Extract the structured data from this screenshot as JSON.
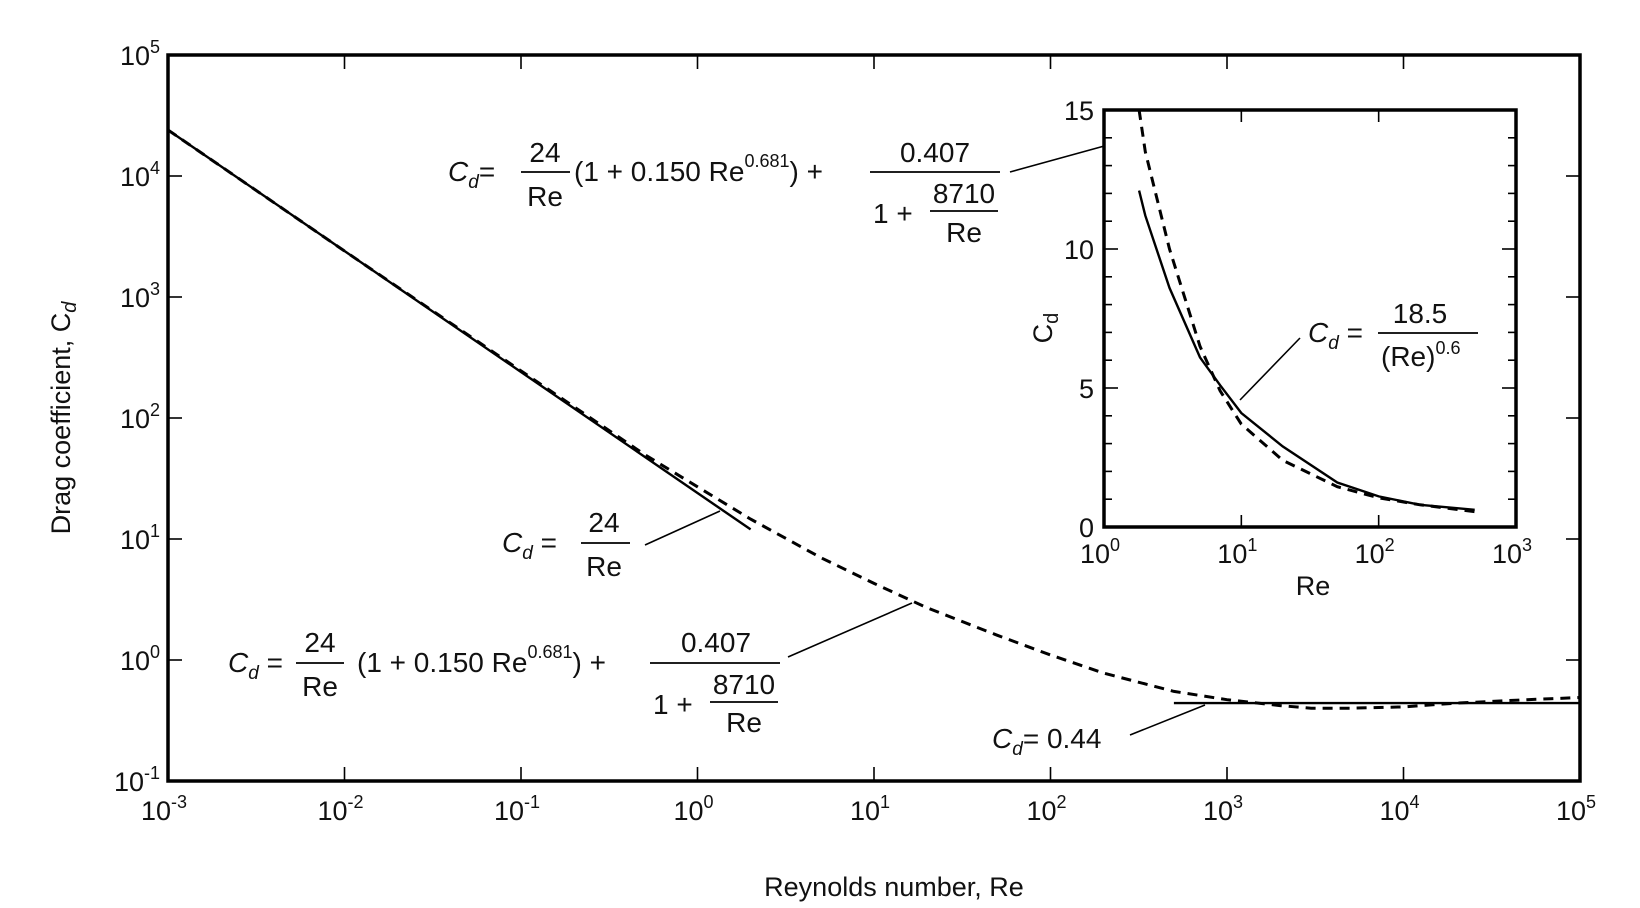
{
  "chart_data": [
    {
      "type": "line",
      "xlabel": "Reynolds number, Re",
      "ylabel": "Drag coefficient, C",
      "ylabel_sub": "d",
      "xscale": "log",
      "yscale": "log",
      "xlim": [
        0.001,
        100000
      ],
      "ylim": [
        0.1,
        100000
      ],
      "x_ticks": [
        {
          "base": "10",
          "exp": "-3"
        },
        {
          "base": "10",
          "exp": "-2"
        },
        {
          "base": "10",
          "exp": "-1"
        },
        {
          "base": "10",
          "exp": "0"
        },
        {
          "base": "10",
          "exp": "1"
        },
        {
          "base": "10",
          "exp": "2"
        },
        {
          "base": "10",
          "exp": "3"
        },
        {
          "base": "10",
          "exp": "4"
        },
        {
          "base": "10",
          "exp": "5"
        }
      ],
      "y_ticks": [
        {
          "base": "10",
          "exp": "-1"
        },
        {
          "base": "10",
          "exp": "0"
        },
        {
          "base": "10",
          "exp": "1"
        },
        {
          "base": "10",
          "exp": "2"
        },
        {
          "base": "10",
          "exp": "3"
        },
        {
          "base": "10",
          "exp": "4"
        },
        {
          "base": "10",
          "exp": "5"
        }
      ],
      "series": [
        {
          "style": "solid",
          "x": [
            0.001,
            0.01,
            0.1,
            1,
            2
          ],
          "y": [
            24000,
            2400,
            240,
            24,
            12
          ]
        },
        {
          "style": "dashed",
          "x": [
            0.001,
            0.01,
            0.1,
            0.5,
            1,
            2,
            5,
            10,
            20,
            50,
            100,
            200,
            500,
            1000,
            2000,
            3000,
            5000,
            10000,
            20000,
            50000,
            100000
          ],
          "y": [
            24000,
            2400,
            245,
            50,
            27,
            14.6,
            7.0,
            4.3,
            2.7,
            1.6,
            1.1,
            0.78,
            0.55,
            0.47,
            0.42,
            0.4,
            0.4,
            0.41,
            0.44,
            0.47,
            0.49
          ]
        },
        {
          "style": "solid",
          "x": [
            500,
            100000
          ],
          "y": [
            0.44,
            0.44
          ]
        }
      ],
      "annotations": {
        "eq_stokes": {
          "lhs": "C",
          "sub": "d",
          "num": "24",
          "den": "Re"
        },
        "eq_main": {
          "lhs": "C",
          "sub": "d",
          "num1": "24",
          "den1": "Re",
          "mid": "(1 + 0.150 Re",
          "exp": "0.681",
          "tail": ") +",
          "num2": "0.407",
          "den2a": "1 +",
          "den2b_num": "8710",
          "den2b_den": "Re"
        },
        "eq_newton": {
          "lhs": "C",
          "sub": "d",
          "rhs": "= 0.44"
        }
      }
    },
    {
      "type": "line",
      "xlabel": "Re",
      "ylabel": "C",
      "ylabel_sub": "d",
      "xscale": "log",
      "xlim": [
        1,
        1000
      ],
      "ylim": [
        0,
        15
      ],
      "x_ticks": [
        {
          "base": "10",
          "exp": "0"
        },
        {
          "base": "10",
          "exp": "1"
        },
        {
          "base": "10",
          "exp": "2"
        },
        {
          "base": "10",
          "exp": "3"
        }
      ],
      "y_ticks": [
        "0",
        "5",
        "10",
        "15"
      ],
      "series": [
        {
          "style": "solid",
          "x": [
            1.8,
            2,
            3,
            5,
            7,
            10,
            20,
            50,
            100,
            200,
            500
          ],
          "y": [
            12.1,
            11.2,
            8.6,
            6.1,
            5.1,
            4.1,
            2.9,
            1.6,
            1.1,
            0.8,
            0.62
          ]
        },
        {
          "style": "dashed",
          "x": [
            1.8,
            2,
            3,
            5,
            7,
            10,
            20,
            50,
            100,
            200,
            500
          ],
          "y": [
            15,
            13.5,
            10.0,
            6.5,
            4.9,
            3.7,
            2.4,
            1.45,
            1.05,
            0.8,
            0.55
          ]
        }
      ],
      "annotations": {
        "eq_fit": {
          "lhs": "C",
          "sub": "d",
          "num": "18.5",
          "den": "(Re)",
          "den_exp": "0.6"
        },
        "eq_main": {
          "lhs": "C",
          "sub": "d",
          "num1": "24",
          "den1": "Re",
          "mid": "(1 + 0.150 Re",
          "exp": "0.681",
          "tail": ") +",
          "num2": "0.407",
          "den2a": "1 +",
          "den2b_num": "8710",
          "den2b_den": "Re"
        }
      }
    }
  ]
}
